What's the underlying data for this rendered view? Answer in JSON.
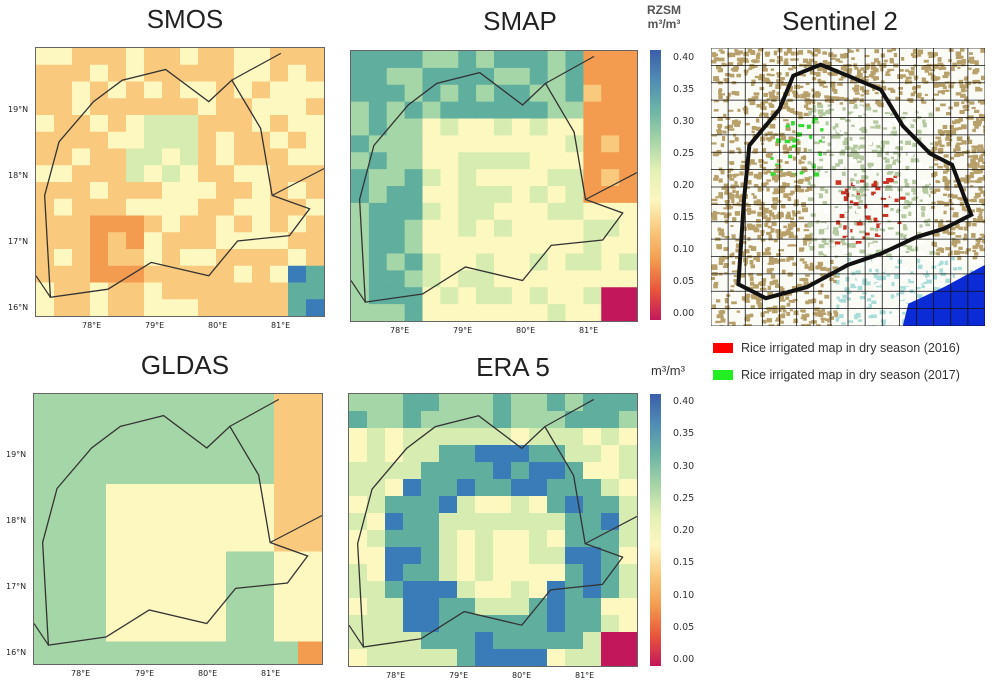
{
  "panels": {
    "smos": {
      "title": "SMOS"
    },
    "smap": {
      "title": "SMAP"
    },
    "gldas": {
      "title": "GLDAS"
    },
    "era5": {
      "title": "ERA 5"
    },
    "sentinel": {
      "title": "Sentinel 2"
    }
  },
  "axes": {
    "lat_labels": [
      "19°N",
      "18°N",
      "17°N",
      "16°N"
    ],
    "lon_labels": [
      "78°E",
      "79°E",
      "80°E",
      "81°E"
    ]
  },
  "colorbar_top": {
    "title_line1": "RZSM",
    "title_line2": "m³/m³",
    "ticks": [
      "0.40",
      "0.35",
      "0.30",
      "0.25",
      "0.20",
      "0.15",
      "0.10",
      "0.05",
      "0.00"
    ]
  },
  "colorbar_bottom": {
    "title": "m³/m³",
    "ticks": [
      "0.40",
      "0.35",
      "0.30",
      "0.25",
      "0.20",
      "0.15",
      "0.10",
      "0.05",
      "0.00"
    ]
  },
  "legend": {
    "items": [
      {
        "label": "Rice irrigated map in dry season (2016)",
        "color": "#ff0000"
      },
      {
        "label": "Rice irrigated map in dry season (2017)",
        "color": "#22ee22"
      }
    ]
  },
  "colors": {
    "scale": [
      "#c2185b",
      "#e8553b",
      "#f39c50",
      "#f9c97d",
      "#fdf7c0",
      "#d6ecb0",
      "#a5d6a7",
      "#5fae9e",
      "#3a7cb8"
    ]
  }
}
